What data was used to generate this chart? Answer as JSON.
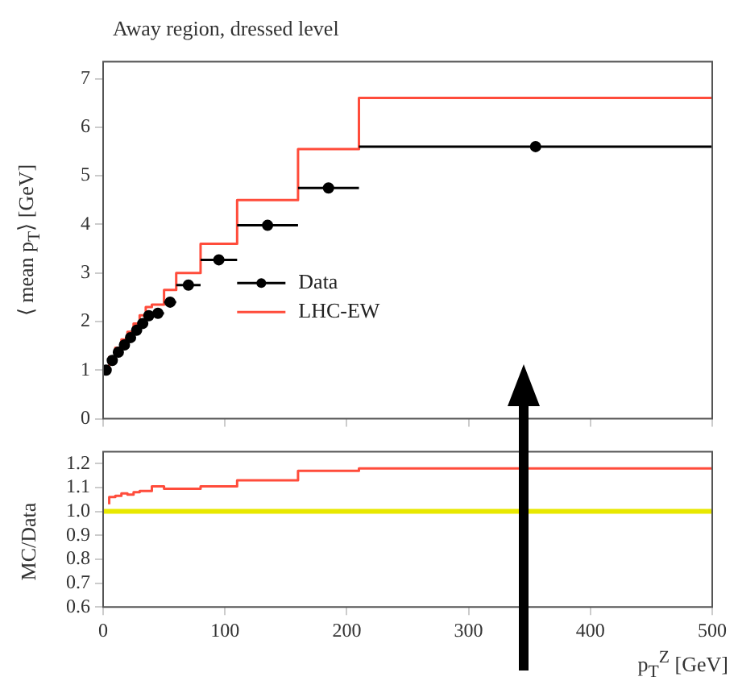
{
  "chart_data": [
    {
      "type": "scatter",
      "title": "Away region, dressed level",
      "ylabel": "⟨ mean p$_{T}$⟩ [GeV]",
      "xlim": [
        0,
        500
      ],
      "xticks": [
        0,
        100,
        200,
        300,
        400,
        500
      ],
      "ylim": [
        0,
        7.35
      ],
      "yticks": [
        0,
        1,
        2,
        3,
        4,
        5,
        6,
        7
      ],
      "tick_labels": "y",
      "legend": "bottom left",
      "grid": false,
      "series": [
        {
          "name": "Data",
          "marker": "circle",
          "color": "#000000",
          "x": [
            2.5,
            7.5,
            12.5,
            17.5,
            22.5,
            27.5,
            32.5,
            37.5,
            45,
            55,
            70,
            95,
            135,
            185,
            355
          ],
          "values": [
            1.0,
            1.2,
            1.37,
            1.52,
            1.67,
            1.82,
            1.96,
            2.12,
            2.17,
            2.4,
            2.75,
            3.27,
            3.98,
            4.75,
            5.6
          ],
          "xerrors": [
            2.5,
            2.5,
            2.5,
            2.5,
            2.5,
            2.5,
            2.5,
            2.5,
            5,
            5,
            10,
            15,
            25,
            25,
            145
          ]
        },
        {
          "name": "LHC-EW",
          "type": "step",
          "color": "#ff4c3b",
          "x": [
            5,
            10,
            15,
            20,
            25,
            30,
            35,
            40,
            50,
            60,
            80,
            110,
            160,
            210,
            500
          ],
          "values": [
            1.03,
            1.27,
            1.46,
            1.63,
            1.79,
            1.96,
            2.13,
            2.3,
            2.35,
            2.65,
            3.0,
            3.6,
            4.5,
            5.55,
            6.6
          ]
        }
      ]
    },
    {
      "type": "step",
      "ylabel": "MC/Data",
      "xlabel": "p$_{T}$$^{Z}$ [GeV]",
      "xlim": [
        0,
        500
      ],
      "xticks": [
        0,
        100,
        200,
        300,
        400,
        500
      ],
      "ylim": [
        0.6,
        1.25
      ],
      "yticks": [
        0.6,
        0.7,
        0.8,
        0.9,
        {
          "value": 1,
          "label": "1.0"
        },
        1.1,
        1.2
      ],
      "grid": false,
      "bands": [
        {
          "axis": "y",
          "from": 0.99,
          "to": 1.01,
          "color": "#e8e800"
        }
      ],
      "series": [
        {
          "color": "#ff4c3b",
          "x": [
            5,
            10,
            15,
            20,
            25,
            30,
            35,
            40,
            50,
            60,
            80,
            110,
            160,
            210,
            500
          ],
          "values": [
            1.03,
            1.06,
            1.065,
            1.075,
            1.07,
            1.08,
            1.085,
            1.085,
            1.105,
            1.095,
            1.095,
            1.105,
            1.13,
            1.17,
            1.18
          ]
        }
      ]
    }
  ]
}
